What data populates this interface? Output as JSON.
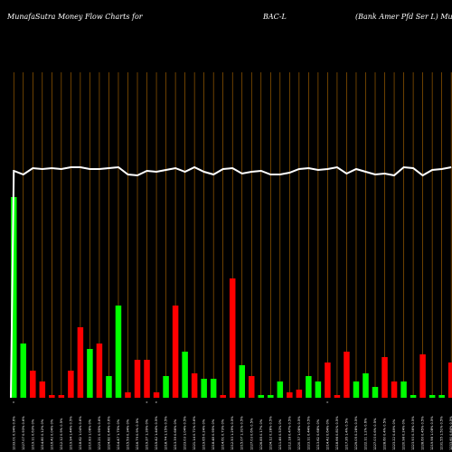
{
  "header": {
    "site": "MunafaSutra  Money  Flow  Charts for",
    "symbol": "BAC-L",
    "description": "(Bank Amer Pfd Ser L) Munafa"
  },
  "colors": {
    "background": "#000000",
    "up_bar": "#00ff00",
    "down_bar": "#ff0000",
    "gridline": "#b36b00",
    "price_line": "#ffffff",
    "labels": "#ffffff"
  },
  "chart_data": {
    "type": "bar",
    "grid": "vertical",
    "tick_labels": [
      "1233.01 0.94% 0.6%",
      "1227.07 0.93% 0.6%",
      "1219.11 0.63% 0%",
      "1214.80 0.12% 0%",
      "1216.42 0.04% 0%",
      "1212.12 0.9% 0.5%",
      "1219.94 1.44% 0.5%",
      "1218.62 1.04% 0.6%",
      "1210.83 1.08% 0%",
      "1223.21 0.95% 0.6%",
      "1224.82 0.44% 0.6%",
      "1214.47 1.75% 0%",
      "1215.59 0.34% 0%",
      "1216.79 0.9% 0.5%",
      "1219.27 1.39% 0%",
      "1215.42 1.44% 0.5%",
      "1218.74 1.15% 0.5%",
      "1213.39 0.66% 0%",
      "1223.03 1.04% 0.5%",
      "1221.14 0.71% 0.6%",
      "1219.65 0.24% 0%",
      "1218.48 0.95% 0%",
      "1214.61 0.73% 0%",
      "1212.53 1.29% 0.5%",
      "1215.07 1.31% 0.5%",
      "1227.03 0.6% 0.5%",
      "1226.85 0.17% 0%",
      "1224.12 0.28% 0.5%",
      "1211.46 0.53% 0%",
      "1212.18 0.47% 0.5%",
      "1220.37 1.08% 0.5%",
      "1223.11 0.44% 0.5%",
      "1213.62 0.68% 0%",
      "1214.42 0.64% 0%",
      "1218.66 0.81% 0.5%",
      "1217.26 1.4% 0.5%",
      "1229.05 0.28% 0.5%",
      "1222.11 1.2% 0.6%",
      "1227.03 0.6% 0.5%",
      "1228.60 0.4% 0.5%",
      "1223.22 0.49% 0%",
      "1220.98 0.24% 0%",
      "1223.93 0.36% 0.5%",
      "1228.60 0.45% 0.5%",
      "1219.98 1.08% 0.5%",
      "1231.55 1.51% 0.5%",
      "1233.60 0.84% 0.5%"
    ],
    "series": [
      {
        "values": [
          7.4,
          2.0,
          1.0,
          0.6,
          0.1,
          0.1,
          1.0,
          2.6,
          1.8,
          2.0,
          0.8,
          3.4,
          0.2,
          1.4,
          1.4,
          0.2,
          0.8,
          3.4,
          1.7,
          0.9,
          0.7,
          0.7,
          0.1,
          4.4,
          1.2,
          0.8,
          0.1,
          0.1,
          0.6,
          0.2,
          0.3,
          0.8,
          0.6,
          1.3,
          0.1,
          1.7,
          0.6,
          0.9,
          0.4,
          1.5,
          0.6,
          0.6,
          0.1,
          1.6,
          0.1,
          0.1,
          1.3
        ],
        "directions": [
          "up",
          "up",
          "down",
          "down",
          "down",
          "down",
          "down",
          "down",
          "up",
          "down",
          "up",
          "up",
          "down",
          "down",
          "down",
          "down",
          "up",
          "down",
          "up",
          "down",
          "up",
          "up",
          "down",
          "down",
          "up",
          "down",
          "up",
          "up",
          "up",
          "down",
          "down",
          "up",
          "up",
          "down",
          "down",
          "down",
          "up",
          "up",
          "up",
          "down",
          "down",
          "up",
          "up",
          "down",
          "up",
          "up",
          "down"
        ]
      }
    ],
    "price_line": [
      0.5,
      0.9,
      0.2,
      0.3,
      0.2,
      0.3,
      0.1,
      0.1,
      0.3,
      0.3,
      0.2,
      0.1,
      0.9,
      1.0,
      0.5,
      0.6,
      0.4,
      0.2,
      0.6,
      0.1,
      0.6,
      0.9,
      0.3,
      0.2,
      0.8,
      0.6,
      0.5,
      0.9,
      0.9,
      0.7,
      0.3,
      0.2,
      0.4,
      0.3,
      0.1,
      0.8,
      0.3,
      0.6,
      0.9,
      0.8,
      1.0,
      0.1,
      0.2,
      1.0,
      0.4,
      0.3,
      0.1
    ],
    "markers": [
      {
        "index": 0,
        "label": "c"
      },
      {
        "index": 14,
        "label": "c"
      },
      {
        "index": 15,
        "label": "c"
      },
      {
        "index": 33,
        "label": "c"
      }
    ]
  }
}
